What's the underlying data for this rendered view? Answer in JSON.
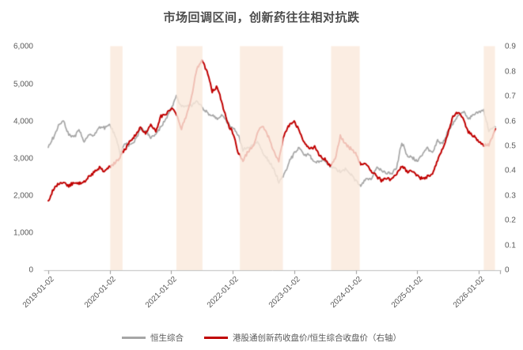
{
  "title": "市场回调区间，创新药往往相对抗跌",
  "colors": {
    "hang_seng_line": "#a6a6a6",
    "ratio_line": "#c00000",
    "band_fill_rgba": "rgba(250,233,220,0.82)",
    "axis_line": "#bfbfbf",
    "tick_mark": "#999999",
    "label_text": "#595959",
    "title_text": "#4d4d4d"
  },
  "chart_data": {
    "type": "line",
    "title": "市场回调区间，创新药往往相对抗跌",
    "x_axis": {
      "tick_labels": [
        "2019-01-02",
        "2020-01-02",
        "2021-01-02",
        "2022-01-02",
        "2023-01-02",
        "2024-01-02",
        "2025-01-02",
        "2026-01-02"
      ],
      "grid": false
    },
    "left_axis": {
      "min": 0,
      "max": 6000,
      "tick_labels": [
        "6,000",
        "5,000",
        "4,000",
        "3,000",
        "2,000",
        "1,000",
        "0"
      ]
    },
    "right_axis": {
      "min": 0,
      "max": 0.9,
      "tick_labels": [
        "0.9",
        "0.8",
        "0.7",
        "0.6",
        "0.5",
        "0.4",
        "0.3",
        "0.2",
        "0.1",
        "0"
      ]
    },
    "months": [
      "2019-01",
      "2019-02",
      "2019-03",
      "2019-04",
      "2019-05",
      "2019-06",
      "2019-07",
      "2019-08",
      "2019-09",
      "2019-10",
      "2019-11",
      "2019-12",
      "2020-01",
      "2020-02",
      "2020-03",
      "2020-04",
      "2020-05",
      "2020-06",
      "2020-07",
      "2020-08",
      "2020-09",
      "2020-10",
      "2020-11",
      "2020-12",
      "2021-01",
      "2021-02",
      "2021-03",
      "2021-04",
      "2021-05",
      "2021-06",
      "2021-07",
      "2021-08",
      "2021-09",
      "2021-10",
      "2021-11",
      "2021-12",
      "2022-01",
      "2022-02",
      "2022-03",
      "2022-04",
      "2022-05",
      "2022-06",
      "2022-07",
      "2022-08",
      "2022-09",
      "2022-10",
      "2022-11",
      "2022-12",
      "2023-01",
      "2023-02",
      "2023-03",
      "2023-04",
      "2023-05",
      "2023-06",
      "2023-07",
      "2023-08",
      "2023-09",
      "2023-10",
      "2023-11",
      "2023-12",
      "2024-01",
      "2024-02",
      "2024-03",
      "2024-04",
      "2024-05",
      "2024-06",
      "2024-07",
      "2024-08",
      "2024-09",
      "2024-10",
      "2024-11",
      "2024-12",
      "2025-01",
      "2025-02",
      "2025-03",
      "2025-04",
      "2025-05",
      "2025-06",
      "2025-07",
      "2025-08",
      "2025-09",
      "2025-10",
      "2025-11",
      "2025-12",
      "2026-01",
      "2026-02",
      "2026-03"
    ],
    "series": [
      {
        "name": "恒生综合",
        "axis": "left",
        "color": "#a6a6a6",
        "values": [
          3300,
          3560,
          3900,
          4000,
          3650,
          3570,
          3760,
          3480,
          3650,
          3610,
          3870,
          3820,
          3930,
          3650,
          3150,
          3400,
          3350,
          3500,
          3800,
          3750,
          3580,
          3650,
          3860,
          4050,
          4350,
          4680,
          4400,
          4430,
          4400,
          4540,
          4380,
          4250,
          4150,
          4080,
          4180,
          3950,
          3830,
          3650,
          3250,
          3300,
          3370,
          3440,
          3100,
          2950,
          2730,
          2380,
          2550,
          2900,
          3150,
          3300,
          3100,
          3090,
          2900,
          2950,
          2950,
          2800,
          2720,
          2660,
          2700,
          2580,
          2400,
          2280,
          2450,
          2450,
          2750,
          2700,
          2600,
          2600,
          2750,
          3440,
          3100,
          3020,
          2950,
          3080,
          3300,
          3150,
          3480,
          3400,
          3720,
          3950,
          4150,
          4280,
          4050,
          4180,
          4250,
          4300,
          3750
        ],
        "end_value": 3850
      },
      {
        "name": "港股通创新药收盘价/恒生综合收盘价（右轴）",
        "axis": "right",
        "color": "#c00000",
        "values": [
          0.28,
          0.325,
          0.35,
          0.35,
          0.34,
          0.355,
          0.35,
          0.36,
          0.375,
          0.395,
          0.415,
          0.4,
          0.415,
          0.43,
          0.455,
          0.49,
          0.52,
          0.545,
          0.575,
          0.55,
          0.585,
          0.56,
          0.62,
          0.63,
          0.655,
          0.63,
          0.57,
          0.625,
          0.7,
          0.81,
          0.85,
          0.8,
          0.72,
          0.74,
          0.67,
          0.59,
          0.555,
          0.48,
          0.44,
          0.48,
          0.5,
          0.565,
          0.58,
          0.535,
          0.48,
          0.44,
          0.545,
          0.585,
          0.6,
          0.565,
          0.515,
          0.485,
          0.5,
          0.46,
          0.445,
          0.42,
          0.45,
          0.54,
          0.51,
          0.49,
          0.475,
          0.425,
          0.43,
          0.4,
          0.38,
          0.363,
          0.373,
          0.367,
          0.39,
          0.42,
          0.4,
          0.4,
          0.38,
          0.367,
          0.378,
          0.39,
          0.445,
          0.49,
          0.55,
          0.62,
          0.64,
          0.61,
          0.56,
          0.54,
          0.52,
          0.505,
          0.505
        ],
        "end_value": 0.57
      }
    ],
    "end_month_offset": 87.3,
    "highlight_bands": [
      {
        "from_month": 12.1,
        "to_month": 14.5,
        "range": "2020-01 ~ 2020-03"
      },
      {
        "from_month": 25.0,
        "to_month": 30.1,
        "range": "2021-02 ~ 2021-07"
      },
      {
        "from_month": 37.4,
        "to_month": 45.8,
        "range": "2022-02 ~ 2022-10"
      },
      {
        "from_month": 55.2,
        "to_month": 60.8,
        "range": "2023-08 ~ 2024-01"
      },
      {
        "from_month": 85.0,
        "to_month": 87.2,
        "range": "2026-02 ~ 2026-04"
      }
    ],
    "legend_position": "bottom"
  },
  "legend": {
    "items": [
      {
        "label": "恒生综合",
        "color": "#a6a6a6"
      },
      {
        "label": "港股通创新药收盘价/恒生综合收盘价（右轴）",
        "color": "#c00000"
      }
    ]
  }
}
